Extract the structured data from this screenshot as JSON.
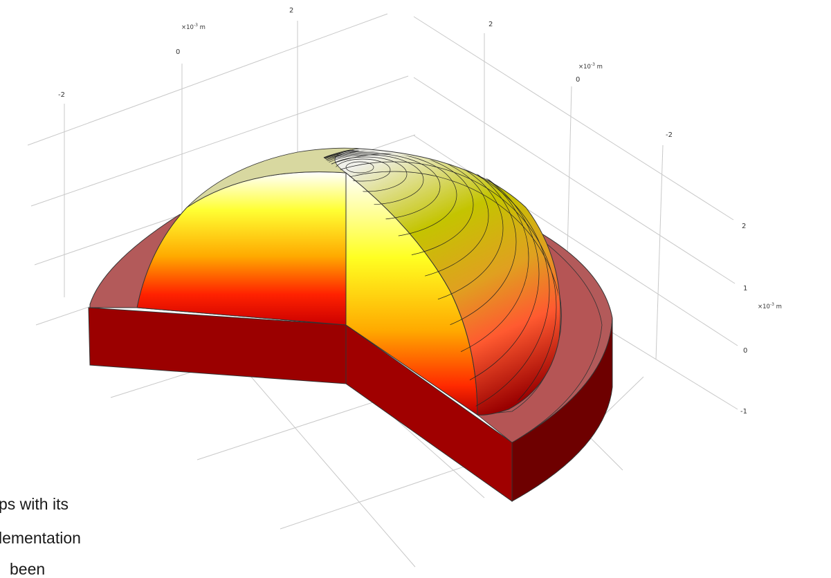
{
  "plot": {
    "unit_prefix": "×10",
    "unit_exp": "-3",
    "unit_suffix": " m",
    "back_axis_ticks": [
      "-2",
      "0",
      "2"
    ],
    "right_axis_ticks": [
      "2",
      "0",
      "-2"
    ],
    "vertical_axis_ticks": [
      "2",
      "1",
      "0",
      "-1"
    ]
  },
  "caption": {
    "line1": "ps with its",
    "line2": "lementation",
    "line3": "been"
  },
  "colors": {
    "ring_top": "#b35a5a",
    "ring_side_front": "#9b0000",
    "ring_side_right": "#6e0000",
    "grid": "#c8c8c8"
  }
}
